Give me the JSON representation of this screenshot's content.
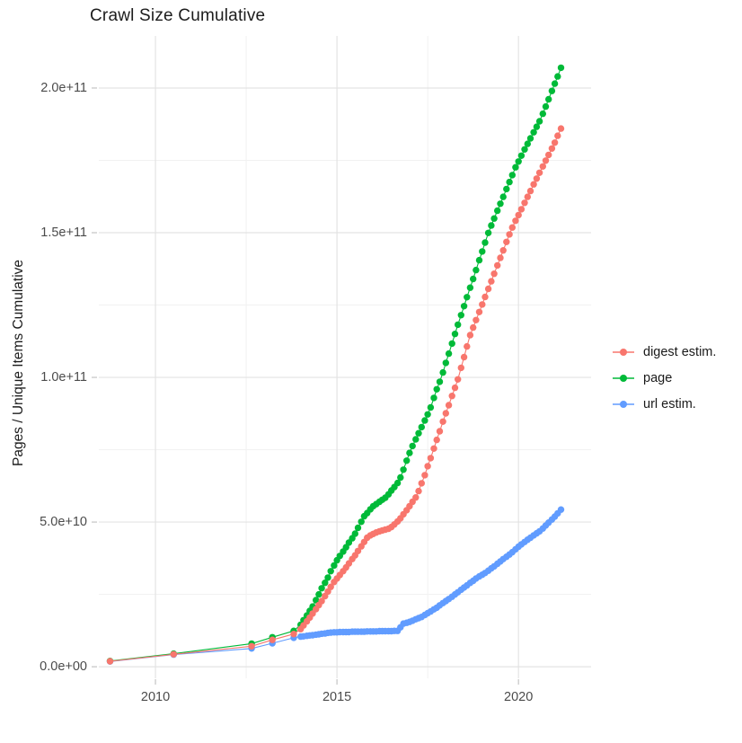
{
  "title": "Crawl Size Cumulative",
  "y_axis": {
    "title": "Pages / Unique Items Cumulative"
  },
  "legend": {
    "items": [
      {
        "label": "digest estim.",
        "color": "#F8766D"
      },
      {
        "label": "page",
        "color": "#00BA38"
      },
      {
        "label": "url estim.",
        "color": "#619CFF"
      }
    ]
  },
  "chart_data": {
    "type": "scatter",
    "title": "Crawl Size Cumulative",
    "xlabel": "",
    "ylabel": "Pages / Unique Items Cumulative",
    "x_unit": "decimal year (crawl date)",
    "y_unit": "count; values stored in billions (1e9)",
    "grid": true,
    "legend_position": "right",
    "xlim": [
      2008.44,
      2022.0
    ],
    "ylim": [
      -4,
      218
    ],
    "x_ticks": [
      {
        "label": "2010",
        "value": 2010
      },
      {
        "label": "2015",
        "value": 2015
      },
      {
        "label": "2020",
        "value": 2020
      }
    ],
    "x_minor_ticks": [
      2012.5,
      2017.5
    ],
    "y_ticks": [
      {
        "label": "0.0e+00",
        "value": 0
      },
      {
        "label": "5.0e+10",
        "value": 50
      },
      {
        "label": "1.0e+11",
        "value": 100
      },
      {
        "label": "1.5e+11",
        "value": 150
      },
      {
        "label": "2.0e+11",
        "value": 200
      }
    ],
    "y_minor_ticks": [
      25,
      75,
      125,
      175
    ],
    "x": [
      2008.75,
      2010.5,
      2012.65,
      2013.22,
      2013.81,
      2014.0,
      2014.08,
      2014.17,
      2014.25,
      2014.33,
      2014.42,
      2014.5,
      2014.58,
      2014.67,
      2014.75,
      2014.83,
      2014.92,
      2015.0,
      2015.08,
      2015.17,
      2015.25,
      2015.33,
      2015.42,
      2015.5,
      2015.58,
      2015.67,
      2015.75,
      2015.83,
      2015.92,
      2016.0,
      2016.08,
      2016.17,
      2016.25,
      2016.33,
      2016.42,
      2016.5,
      2016.58,
      2016.67,
      2016.75,
      2016.83,
      2016.92,
      2017.0,
      2017.08,
      2017.17,
      2017.25,
      2017.33,
      2017.42,
      2017.5,
      2017.58,
      2017.67,
      2017.75,
      2017.83,
      2017.92,
      2018.0,
      2018.08,
      2018.17,
      2018.25,
      2018.33,
      2018.42,
      2018.5,
      2018.58,
      2018.67,
      2018.75,
      2018.83,
      2018.92,
      2019.0,
      2019.08,
      2019.17,
      2019.25,
      2019.33,
      2019.42,
      2019.5,
      2019.58,
      2019.67,
      2019.75,
      2019.83,
      2019.92,
      2020.0,
      2020.08,
      2020.17,
      2020.25,
      2020.33,
      2020.42,
      2020.5,
      2020.58,
      2020.67,
      2020.75,
      2020.83,
      2020.92,
      2021.0,
      2021.08,
      2021.17
    ],
    "series": [
      {
        "name": "digest estim.",
        "color": "#F8766D",
        "values": [
          1.9,
          4.3,
          7.1,
          9.3,
          11.3,
          13.0,
          14.3,
          15.7,
          17.0,
          18.4,
          19.9,
          21.3,
          22.7,
          24.4,
          26.0,
          27.6,
          29.3,
          30.5,
          31.7,
          33.0,
          34.3,
          35.7,
          37.2,
          38.5,
          40.0,
          41.6,
          43.1,
          44.6,
          45.4,
          45.9,
          46.4,
          46.8,
          47.1,
          47.4,
          47.7,
          48.3,
          49.2,
          50.2,
          51.3,
          52.7,
          54.1,
          55.5,
          57.0,
          58.5,
          60.7,
          63.4,
          66.2,
          69.3,
          72.1,
          75.4,
          78.4,
          81.4,
          84.7,
          87.6,
          90.4,
          93.6,
          96.4,
          99.3,
          103.3,
          107.0,
          110.7,
          114.6,
          117.2,
          119.8,
          122.6,
          125.2,
          127.8,
          130.6,
          133.2,
          135.8,
          138.7,
          141.3,
          143.9,
          146.8,
          149.4,
          151.8,
          154.1,
          156.1,
          158.1,
          160.3,
          162.4,
          164.4,
          166.7,
          168.7,
          170.7,
          172.9,
          174.9,
          176.9,
          179.1,
          181.1,
          183.5,
          186.0
        ]
      },
      {
        "name": "page",
        "color": "#00BA38",
        "values": [
          2.0,
          4.5,
          8.0,
          10.2,
          12.4,
          14.5,
          16.1,
          17.7,
          19.3,
          20.8,
          23.0,
          25.0,
          27.1,
          29.0,
          30.8,
          33.0,
          35.0,
          36.8,
          38.3,
          39.8,
          41.3,
          42.9,
          44.4,
          46.0,
          48.0,
          50.1,
          52.0,
          53.1,
          54.4,
          55.5,
          56.2,
          57.0,
          57.7,
          58.4,
          59.6,
          60.9,
          62.1,
          63.5,
          65.4,
          68.1,
          71.2,
          73.9,
          76.3,
          78.6,
          80.7,
          82.8,
          85.1,
          87.2,
          89.6,
          92.9,
          95.9,
          98.5,
          101.7,
          105.0,
          108.2,
          111.7,
          115.0,
          118.2,
          121.5,
          124.6,
          127.7,
          131.0,
          134.0,
          137.1,
          140.5,
          143.5,
          146.6,
          149.9,
          152.5,
          154.9,
          157.6,
          160.0,
          162.4,
          165.1,
          167.5,
          169.9,
          172.6,
          174.6,
          176.6,
          178.8,
          180.7,
          182.6,
          184.7,
          186.6,
          188.5,
          191.1,
          193.6,
          196.1,
          199.0,
          201.5,
          204.0,
          207.0
        ]
      },
      {
        "name": "url estim.",
        "color": "#619CFF",
        "values": [
          1.8,
          4.2,
          6.3,
          8.1,
          10.0,
          10.4,
          10.5,
          10.7,
          10.8,
          10.9,
          11.1,
          11.2,
          11.4,
          11.5,
          11.7,
          11.8,
          11.9,
          11.9,
          12.0,
          12.0,
          12.0,
          12.0,
          12.1,
          12.1,
          12.1,
          12.1,
          12.1,
          12.2,
          12.2,
          12.2,
          12.2,
          12.3,
          12.3,
          12.3,
          12.3,
          12.3,
          12.4,
          12.4,
          13.6,
          14.9,
          15.2,
          15.5,
          15.9,
          16.4,
          16.8,
          17.2,
          17.9,
          18.5,
          19.1,
          19.8,
          20.4,
          21.2,
          22.0,
          22.7,
          23.4,
          24.2,
          25.0,
          25.7,
          26.6,
          27.4,
          28.1,
          29.0,
          29.7,
          30.5,
          31.2,
          31.8,
          32.4,
          33.2,
          34.0,
          34.7,
          35.6,
          36.4,
          37.2,
          38.0,
          38.8,
          39.6,
          40.6,
          41.5,
          42.3,
          43.1,
          43.9,
          44.6,
          45.4,
          46.1,
          46.8,
          47.8,
          48.8,
          49.8,
          50.9,
          51.9,
          53.0,
          54.3
        ]
      }
    ],
    "colors": {
      "major_grid": "#e3e3e3",
      "minor_grid": "#f1f1f1",
      "axis_tick": "#c4c4c4",
      "axis_text": "#4b4b4b"
    }
  }
}
